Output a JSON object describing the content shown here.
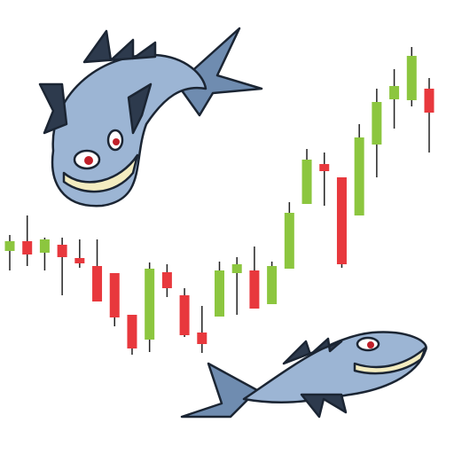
{
  "chart_data": {
    "type": "candlestick",
    "open": [
      137,
      148,
      135,
      144,
      129,
      120,
      112,
      65,
      37,
      113,
      87,
      45,
      63,
      112,
      115,
      77,
      117,
      190,
      235,
      220,
      177,
      257,
      308,
      307,
      320
    ],
    "high": [
      155,
      177,
      152,
      152,
      150,
      150,
      112,
      65,
      124,
      122,
      95,
      75,
      125,
      130,
      142,
      125,
      192,
      252,
      248,
      220,
      280,
      320,
      342,
      367,
      332
    ],
    "low": [
      115,
      120,
      115,
      87,
      118,
      80,
      52,
      20,
      23,
      85,
      40,
      22,
      63,
      65,
      72,
      77,
      117,
      190,
      188,
      118,
      177,
      220,
      275,
      300,
      248
    ],
    "close": [
      148,
      133,
      150,
      130,
      123,
      80,
      62,
      27,
      117,
      95,
      42,
      32,
      115,
      122,
      72,
      120,
      180,
      240,
      227,
      122,
      265,
      305,
      323,
      357,
      293
    ],
    "up_color": "#8cc63f",
    "down_color": "#e8383d",
    "ylim": [
      0,
      380
    ]
  }
}
